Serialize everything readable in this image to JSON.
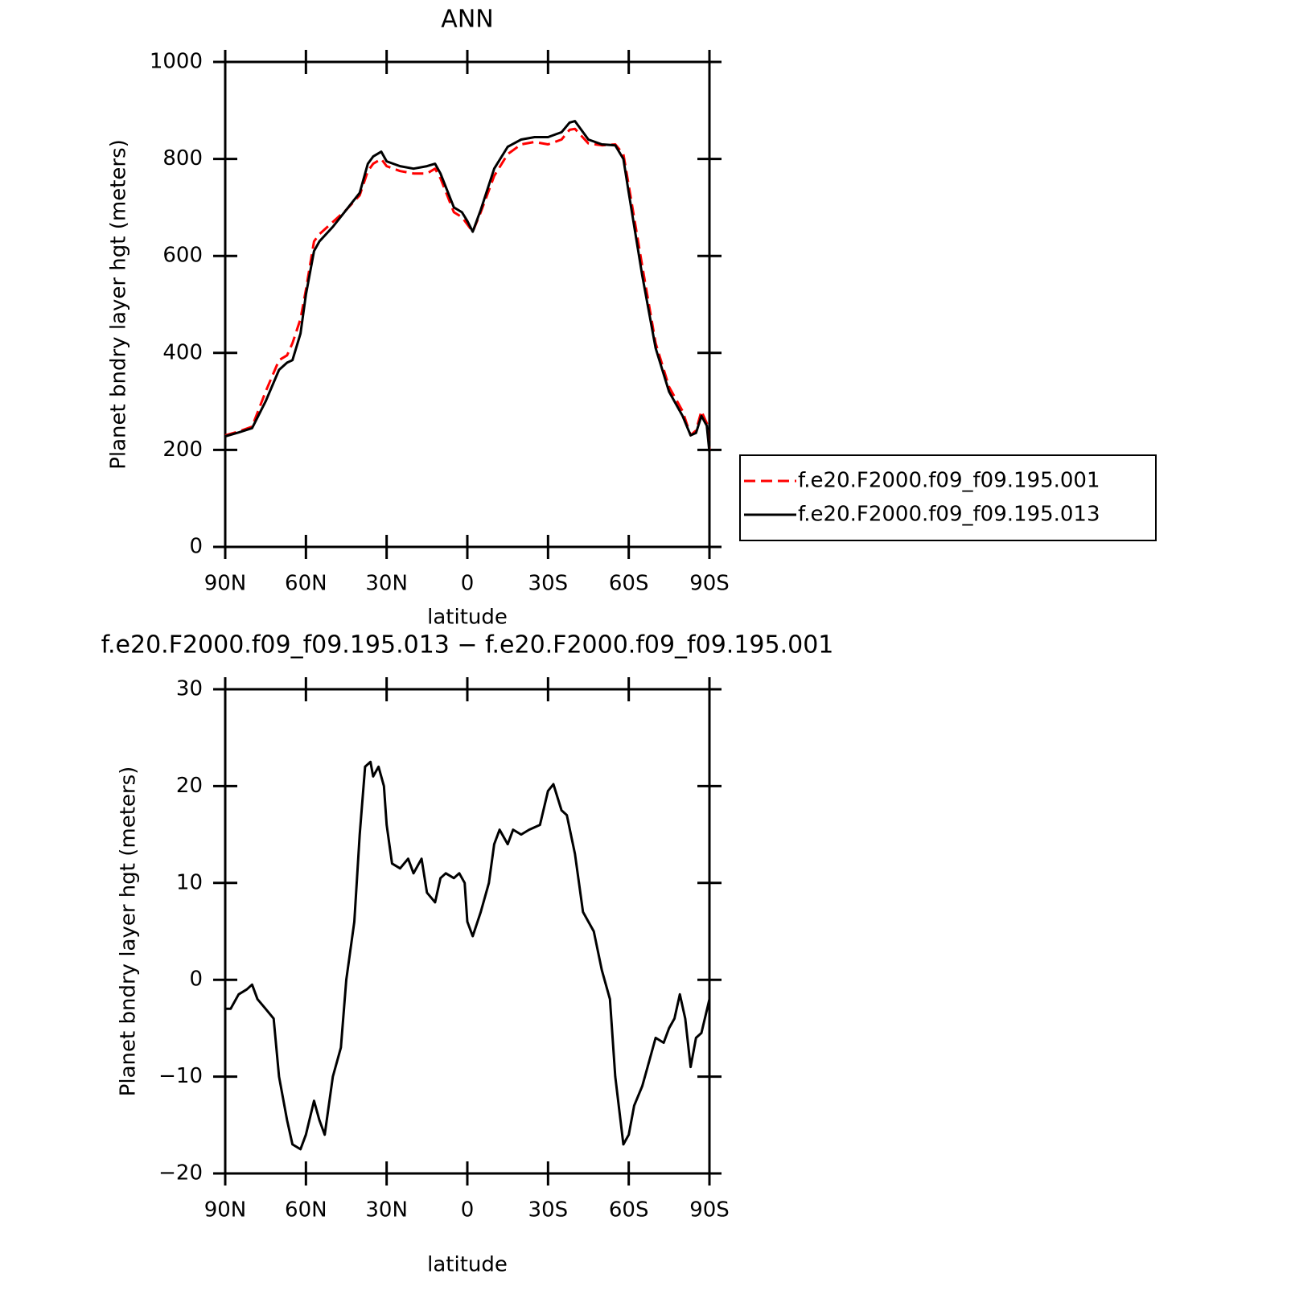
{
  "chart_data": [
    {
      "type": "line",
      "title": "ANN",
      "ylabel": "Planet bndry layer hgt (meters)",
      "xlabel": "latitude",
      "x": [
        90,
        85,
        80,
        75,
        70,
        67,
        65,
        62,
        60,
        57,
        55,
        50,
        45,
        40,
        37,
        35,
        32,
        30,
        25,
        20,
        15,
        12,
        10,
        5,
        2,
        0,
        -2,
        -5,
        -10,
        -15,
        -20,
        -25,
        -30,
        -35,
        -38,
        -40,
        -45,
        -50,
        -55,
        -58,
        -60,
        -65,
        -70,
        -75,
        -80,
        -83,
        -85,
        -87,
        -89,
        -90
      ],
      "series": [
        {
          "name": "f.e20.F2000.f09_f09.195.001",
          "color": "#ff0000",
          "dash": "dashed",
          "values": [
            230,
            238,
            248,
            320,
            385,
            395,
            420,
            470,
            530,
            630,
            645,
            670,
            695,
            725,
            775,
            790,
            800,
            785,
            775,
            770,
            770,
            780,
            760,
            690,
            680,
            665,
            650,
            690,
            765,
            810,
            830,
            835,
            830,
            840,
            860,
            862,
            832,
            828,
            830,
            810,
            745,
            580,
            420,
            330,
            280,
            230,
            240,
            280,
            255,
            200
          ]
        },
        {
          "name": "f.e20.F2000.f09_f09.195.013",
          "color": "#000000",
          "values": [
            228,
            236,
            245,
            300,
            365,
            380,
            385,
            440,
            520,
            610,
            630,
            660,
            695,
            730,
            790,
            805,
            815,
            795,
            785,
            780,
            785,
            790,
            770,
            700,
            690,
            672,
            650,
            695,
            780,
            825,
            840,
            845,
            845,
            855,
            875,
            878,
            840,
            830,
            828,
            800,
            730,
            560,
            410,
            320,
            270,
            230,
            235,
            270,
            250,
            195
          ]
        }
      ],
      "xlim": [
        90,
        -90
      ],
      "xticks": [
        {
          "value": 90,
          "label": "90N"
        },
        {
          "value": 60,
          "label": "60N"
        },
        {
          "value": 30,
          "label": "30N"
        },
        0,
        {
          "value": -30,
          "label": "30S"
        },
        {
          "value": -60,
          "label": "60S"
        },
        {
          "value": -90,
          "label": "90S"
        }
      ],
      "ylim": [
        0,
        1000
      ],
      "yticks": [
        0,
        200,
        400,
        600,
        800,
        1000
      ],
      "legend": "right"
    },
    {
      "type": "line",
      "title": "f.e20.F2000.f09_f09.195.013 − f.e20.F2000.f09_f09.195.001",
      "ylabel": "Planet bndry layer hgt (meters)",
      "xlabel": "latitude",
      "x": [
        90,
        88,
        85,
        82,
        80,
        78,
        75,
        72,
        70,
        67,
        65,
        62,
        60,
        57,
        55,
        53,
        50,
        47,
        45,
        42,
        40,
        38,
        36,
        35,
        33,
        31,
        30,
        28,
        25,
        22,
        20,
        17,
        15,
        12,
        10,
        8,
        5,
        3,
        1,
        0,
        -2,
        -5,
        -8,
        -10,
        -12,
        -15,
        -17,
        -20,
        -23,
        -27,
        -30,
        -32,
        -35,
        -37,
        -40,
        -43,
        -47,
        -50,
        -53,
        -55,
        -58,
        -60,
        -62,
        -65,
        -67,
        -70,
        -73,
        -75,
        -77,
        -79,
        -81,
        -83,
        -85,
        -87,
        -90
      ],
      "values": [
        -3,
        -3,
        -1.5,
        -1,
        -0.5,
        -2,
        -3,
        -4,
        -10,
        -14.5,
        -17,
        -17.5,
        -16,
        -12.5,
        -14.5,
        -16,
        -10,
        -7,
        0,
        6,
        15,
        22,
        22.5,
        21,
        22,
        20,
        16,
        12,
        11.5,
        12.5,
        11,
        12.5,
        9,
        8,
        10.5,
        11,
        10.5,
        11,
        10,
        6,
        4.5,
        7,
        10,
        14,
        15.5,
        14,
        15.5,
        15,
        15.5,
        16,
        19.5,
        20.2,
        17.5,
        17,
        13,
        7,
        5,
        1,
        -2,
        -10,
        -17,
        -16,
        -13,
        -11,
        -9,
        -6,
        -6.5,
        -5,
        -4,
        -1.5,
        -4,
        -9,
        -6,
        -5.5,
        -2
      ],
      "color": "#000000",
      "xlim": [
        90,
        -90
      ],
      "xticks": [
        {
          "value": 90,
          "label": "90N"
        },
        {
          "value": 60,
          "label": "60N"
        },
        {
          "value": 30,
          "label": "30N"
        },
        0,
        {
          "value": -30,
          "label": "30S"
        },
        {
          "value": -60,
          "label": "60S"
        },
        {
          "value": -90,
          "label": "90S"
        }
      ],
      "ylim": [
        -20,
        30
      ],
      "yticks": [
        {
          "value": -20,
          "label": "−20"
        },
        {
          "value": -10,
          "label": "−10"
        },
        0,
        10,
        20,
        30
      ]
    }
  ]
}
